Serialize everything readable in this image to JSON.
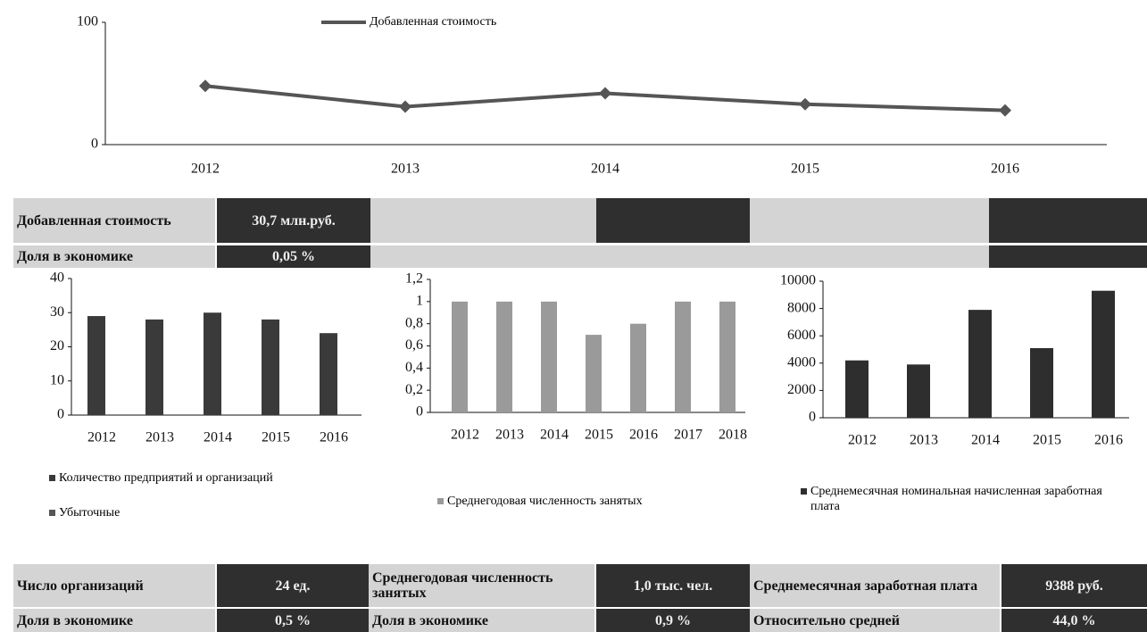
{
  "chart_data": [
    {
      "type": "line",
      "categories": [
        "2012",
        "2013",
        "2014",
        "2015",
        "2016"
      ],
      "series": [
        {
          "name": "Добавленная стоимость",
          "color": "#555555",
          "values": [
            48,
            31,
            42,
            33,
            28
          ]
        }
      ],
      "ylim": [
        0,
        100
      ],
      "yticks": [
        0,
        100
      ]
    },
    {
      "type": "bar",
      "categories": [
        "2012",
        "2013",
        "2014",
        "2015",
        "2016"
      ],
      "series": [
        {
          "name": "Количество предприятий и организаций",
          "color": "#3a3a3a",
          "values": [
            29,
            28,
            30,
            28,
            24
          ]
        },
        {
          "name": "Убыточные",
          "color": "#555555",
          "values": [
            null,
            null,
            null,
            null,
            null
          ]
        }
      ],
      "ylim": [
        0,
        40
      ],
      "yticks": [
        0,
        10,
        20,
        30,
        40
      ]
    },
    {
      "type": "bar",
      "categories": [
        "2012",
        "2013",
        "2014",
        "2015",
        "2016",
        "2017",
        "2018"
      ],
      "series": [
        {
          "name": "Среднегодовая численность занятых",
          "color": "#9a9a9a",
          "values": [
            1,
            1,
            1,
            0.7,
            0.8,
            1,
            1
          ]
        }
      ],
      "ylim": [
        0,
        1.2
      ],
      "yticks": [
        0,
        {
          "value": 0.2,
          "label": "0,2"
        },
        {
          "value": 0.4,
          "label": "0,4"
        },
        {
          "value": 0.6,
          "label": "0,6"
        },
        {
          "value": 0.8,
          "label": "0,8"
        },
        1,
        {
          "value": 1.2,
          "label": "1,2"
        }
      ]
    },
    {
      "type": "bar",
      "categories": [
        "2012",
        "2013",
        "2014",
        "2015",
        "2016"
      ],
      "series": [
        {
          "name": "Среднемесячная номинальная начисленная заработная плата",
          "color": "#2e2e2e",
          "values": [
            4200,
            3900,
            7900,
            5100,
            9300
          ]
        }
      ],
      "ylim": [
        0,
        10000
      ],
      "yticks": [
        0,
        2000,
        4000,
        6000,
        8000,
        10000
      ]
    }
  ],
  "top_table": {
    "rows": [
      [
        "Добавленная стоимость",
        "30,7 млн.руб."
      ],
      [
        "Доля в экономике",
        "0,05 %"
      ]
    ]
  },
  "bottom_table": {
    "rows": [
      [
        "Число организаций",
        "24 ед.",
        "Среднегодовая численность занятых",
        "1,0 тыс. чел.",
        "Среднемесячная заработная плата",
        "9388 руб."
      ],
      [
        "Доля в экономике",
        "0,5 %",
        "Доля в экономике",
        "0,9 %",
        "Относительно средней",
        "44,0 %"
      ]
    ]
  }
}
